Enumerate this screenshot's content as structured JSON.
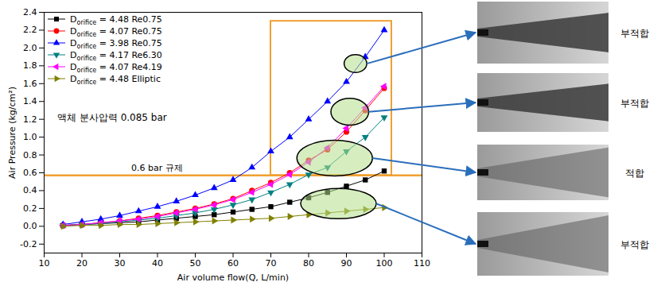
{
  "chart_data": {
    "type": "line",
    "xlabel": "Air volume flow(Q, L/min)",
    "ylabel": "Air Pressure (kg/cm²)",
    "xlim": [
      10,
      110
    ],
    "xticks": [
      10,
      20,
      30,
      40,
      50,
      60,
      70,
      80,
      90,
      100,
      110
    ],
    "ylim": [
      -0.3,
      2.4
    ],
    "yticks": [
      -0.2,
      {
        "value": 0,
        "label": "0.0"
      },
      0.2,
      0.4,
      0.6,
      0.8,
      {
        "value": 1,
        "label": "1.0"
      },
      1.2,
      1.4,
      1.6,
      1.8,
      {
        "value": 2,
        "label": "2.0"
      },
      2.2,
      2.4
    ],
    "legend": "top-left",
    "x": [
      15,
      20,
      25,
      30,
      35,
      40,
      45,
      50,
      55,
      60,
      65,
      70,
      75,
      80,
      85,
      90,
      95,
      100
    ],
    "series": [
      {
        "name": "Dorifice = 4.48 Re0.75",
        "color": "#000000",
        "marker": "square",
        "values": [
          0.01,
          0.02,
          0.03,
          0.04,
          0.05,
          0.07,
          0.09,
          0.11,
          0.13,
          0.16,
          0.19,
          0.22,
          0.27,
          0.32,
          0.38,
          0.45,
          0.52,
          0.62
        ]
      },
      {
        "name": "Dorifice = 4.07 Re0.75",
        "color": "#ff0000",
        "marker": "circle",
        "values": [
          0.01,
          0.02,
          0.04,
          0.06,
          0.09,
          0.12,
          0.16,
          0.2,
          0.25,
          0.31,
          0.4,
          0.49,
          0.6,
          0.74,
          0.86,
          1.06,
          1.3,
          1.55
        ]
      },
      {
        "name": "Dorifice = 3.98 Re0.75",
        "color": "#0000ff",
        "marker": "triangle-up",
        "values": [
          0.02,
          0.05,
          0.08,
          0.12,
          0.17,
          0.22,
          0.28,
          0.35,
          0.43,
          0.52,
          0.66,
          0.84,
          1.0,
          1.2,
          1.4,
          1.62,
          1.9,
          2.2
        ]
      },
      {
        "name": "Dorifice = 4.17 Re6.30",
        "color": "#008080",
        "marker": "triangle-down",
        "values": [
          0.01,
          0.02,
          0.03,
          0.05,
          0.07,
          0.09,
          0.12,
          0.15,
          0.19,
          0.24,
          0.3,
          0.38,
          0.47,
          0.58,
          0.66,
          0.84,
          1.0,
          1.22
        ]
      },
      {
        "name": "Dorifice = 4.07 Re4.19",
        "color": "#ff00ff",
        "marker": "triangle-left",
        "values": [
          0.01,
          0.02,
          0.04,
          0.06,
          0.08,
          0.11,
          0.15,
          0.19,
          0.24,
          0.3,
          0.38,
          0.47,
          0.58,
          0.72,
          0.88,
          1.1,
          1.33,
          1.57
        ]
      },
      {
        "name": "Dorifice = 4.48 Elliptic",
        "color": "#808000",
        "marker": "triangle-right",
        "values": [
          0.0,
          0.01,
          0.01,
          0.02,
          0.02,
          0.03,
          0.04,
          0.05,
          0.06,
          0.07,
          0.08,
          0.09,
          0.11,
          0.13,
          0.15,
          0.17,
          0.19,
          0.21
        ]
      }
    ],
    "annotation": "액체 분사압력 0.085 bar",
    "reference_line": {
      "y": 0.57,
      "label": "0.6 bar 규제",
      "color": "#f0a030"
    },
    "highlight_box": {
      "x": [
        70,
        102
      ],
      "y": [
        0.57,
        2.3
      ],
      "color": "#f0a030"
    },
    "ellipses": [
      {
        "x": 92.5,
        "y": 1.82,
        "rx": 3,
        "ry": 0.1,
        "label": "부적합"
      },
      {
        "x": 91,
        "y": 1.28,
        "rx": 5,
        "ry": 0.15,
        "label": "부적합"
      },
      {
        "x": 87,
        "y": 0.76,
        "rx": 10,
        "ry": 0.2,
        "label": "적합"
      },
      {
        "x": 88,
        "y": 0.25,
        "rx": 10,
        "ry": 0.17,
        "label": "부적합"
      }
    ]
  }
}
